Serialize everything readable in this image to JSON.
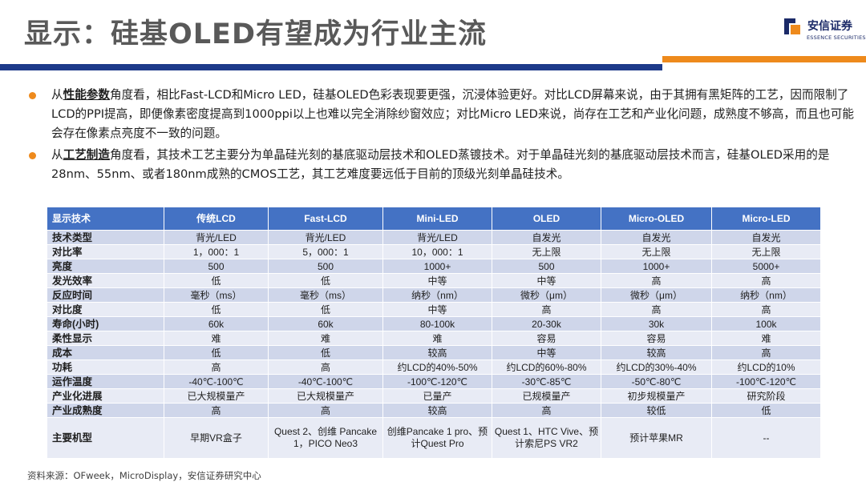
{
  "slide": {
    "title": "显示：硅基OLED有望成为行业主流"
  },
  "logo": {
    "name_cn": "安信证券",
    "name_en": "ESSENCE SECURITIES",
    "brand_color": "#1b2a68",
    "accent_color": "#ee8a1c"
  },
  "bullets": [
    {
      "prefix": "从",
      "keyword": "性能参数",
      "text": "角度看，相比Fast-LCD和Micro LED，硅基OLED色彩表现要更强，沉浸体验更好。对比LCD屏幕来说，由于其拥有黑矩阵的工艺，因而限制了LCD的PPI提高，即便像素密度提高到1000ppi以上也难以完全消除纱窗效应；对比Micro LED来说，尚存在工艺和产业化问题，成熟度不够高，而且也可能会存在像素点亮度不一致的问题。"
    },
    {
      "prefix": "从",
      "keyword": "工艺制造",
      "text": "角度看，其技术工艺主要分为单晶硅光刻的基底驱动层技术和OLED蒸镀技术。对于单晶硅光刻的基底驱动层技术而言，硅基OLED采用的是28nm、55nm、或者180nm成熟的CMOS工艺，其工艺难度要远低于目前的顶级光刻单晶硅技术。"
    }
  ],
  "table": {
    "headers": [
      "显示技术",
      "传统LCD",
      "Fast-LCD",
      "Mini-LED",
      "OLED",
      "Micro-OLED",
      "Micro-LED"
    ],
    "rows": [
      [
        "技术类型",
        "背光/LED",
        "背光/LED",
        "背光/LED",
        "自发光",
        "自发光",
        "自发光"
      ],
      [
        "对比率",
        "1，000：1",
        "5，000：1",
        "10，000：1",
        "无上限",
        "无上限",
        "无上限"
      ],
      [
        "亮度",
        "500",
        "500",
        "1000+",
        "500",
        "1000+",
        "5000+"
      ],
      [
        "发光效率",
        "低",
        "低",
        "中等",
        "中等",
        "高",
        "高"
      ],
      [
        "反应时间",
        "毫秒（ms）",
        "毫秒（ms）",
        "纳秒（nm）",
        "微秒（μm）",
        "微秒（μm）",
        "纳秒（nm）"
      ],
      [
        "对比度",
        "低",
        "低",
        "中等",
        "高",
        "高",
        "高"
      ],
      [
        "寿命(小时)",
        "60k",
        "60k",
        "80-100k",
        "20-30k",
        "30k",
        "100k"
      ],
      [
        "柔性显示",
        "难",
        "难",
        "难",
        "容易",
        "容易",
        "难"
      ],
      [
        "成本",
        "低",
        "低",
        "较高",
        "中等",
        "较高",
        "高"
      ],
      [
        "功耗",
        "高",
        "高",
        "约LCD的40%-50%",
        "约LCD的60%-80%",
        "约LCD的30%-40%",
        "约LCD的10%"
      ],
      [
        "运作温度",
        "-40℃-100℃",
        "-40℃-100℃",
        "-100℃-120℃",
        "-30℃-85℃",
        "-50℃-80℃",
        "-100℃-120℃"
      ],
      [
        "产业化进展",
        "已大规模量产",
        "已大规模量产",
        "已量产",
        "已规模量产",
        "初步规模量产",
        "研究阶段"
      ],
      [
        "产业成熟度",
        "高",
        "高",
        "较高",
        "高",
        "较低",
        "低"
      ],
      [
        "主要机型",
        "早期VR盒子",
        "Quest 2、创维 Pancake 1，PICO Neo3",
        "创维Pancake 1 pro、预计Quest Pro",
        "Quest 1、HTC Vive、预计索尼PS VR2",
        "预计苹果MR",
        "--"
      ]
    ]
  },
  "source": "资料来源：OFweek，MicroDisplay，安信证券研究中心"
}
